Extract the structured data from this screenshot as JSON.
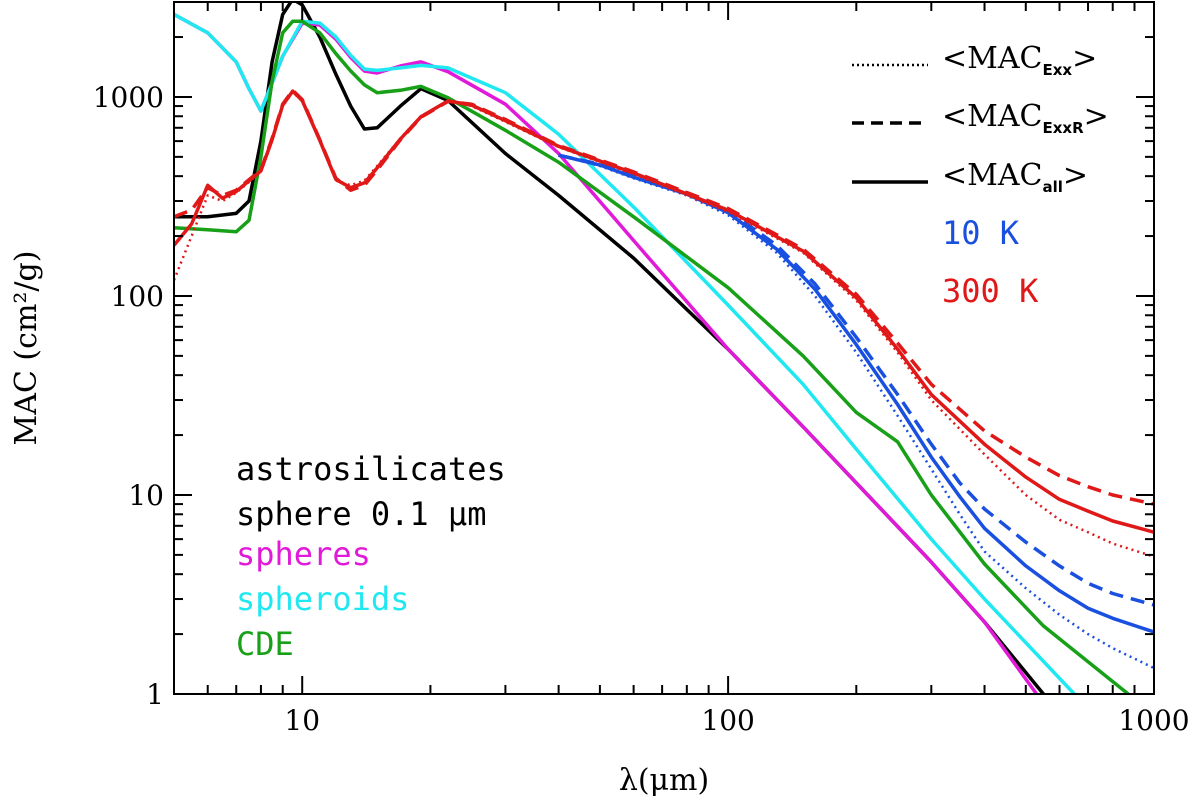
{
  "chart_data": {
    "type": "line",
    "title": "",
    "xscale": "log",
    "yscale": "log",
    "xlim": [
      5,
      1000
    ],
    "ylim": [
      1,
      3000
    ],
    "xlabel": "λ(μm)",
    "ylabel": "MAC (cm²/g)",
    "x_ticks": [
      {
        "value": 10,
        "label": "10"
      },
      {
        "value": 100,
        "label": "100"
      },
      {
        "value": 1000,
        "label": "1000"
      }
    ],
    "y_ticks": [
      {
        "value": 1,
        "label": "1"
      },
      {
        "value": 10,
        "label": "10"
      },
      {
        "value": 100,
        "label": "100"
      },
      {
        "value": 1000,
        "label": "1000"
      }
    ],
    "annotations": [
      {
        "text": "astrosilicates",
        "color": "#000000"
      },
      {
        "text": "sphere 0.1 μm",
        "color": "#000000"
      },
      {
        "text": "spheres",
        "color": "#e01ad8"
      },
      {
        "text": "spheroids",
        "color": "#20e8f0"
      },
      {
        "text": "CDE",
        "color": "#18a018"
      }
    ],
    "legend": {
      "placement": "top-right",
      "entries": [
        {
          "style": "dotted",
          "main": "MAC",
          "sub": "Exx"
        },
        {
          "style": "dashed",
          "main": "MAC",
          "sub": "ExxR"
        },
        {
          "style": "solid",
          "main": "MAC",
          "sub": "all"
        }
      ],
      "temperatures": [
        {
          "label": "10 K",
          "color": "#1a50e0"
        },
        {
          "label": "300 K",
          "color": "#e01818"
        }
      ]
    },
    "series": [
      {
        "name": "sphere 0.1 μm",
        "color": "#000000",
        "style": "solid",
        "x": [
          5,
          6,
          7,
          7.5,
          8,
          8.5,
          9,
          9.5,
          10,
          11,
          12,
          13,
          14,
          15,
          17,
          19,
          22,
          30,
          40,
          60,
          100,
          150,
          200,
          300,
          400,
          550
        ],
        "y": [
          250,
          250,
          260,
          300,
          600,
          1500,
          2600,
          3100,
          2900,
          2000,
          1300,
          900,
          690,
          700,
          900,
          1100,
          960,
          520,
          320,
          155,
          54,
          22,
          11.5,
          4.6,
          2.3,
          1
        ]
      },
      {
        "name": "spheres",
        "color": "#e01ad8",
        "style": "solid",
        "x": [
          5,
          6,
          7,
          7.5,
          8,
          9,
          10,
          11,
          12,
          13,
          14,
          15,
          17,
          19,
          22,
          30,
          40,
          60,
          100,
          150,
          200,
          300,
          400,
          530
        ],
        "y": [
          2600,
          2100,
          1500,
          1100,
          850,
          1600,
          2350,
          2300,
          1950,
          1580,
          1350,
          1320,
          1430,
          1500,
          1340,
          920,
          520,
          190,
          54,
          22,
          11.5,
          4.6,
          2.3,
          1
        ]
      },
      {
        "name": "spheroids",
        "color": "#20e8f0",
        "style": "solid",
        "x": [
          5,
          6,
          7,
          7.5,
          8,
          9,
          10,
          11,
          12,
          13,
          14,
          15,
          17,
          19,
          22,
          30,
          40,
          60,
          100,
          150,
          200,
          300,
          400,
          650
        ],
        "y": [
          2600,
          2100,
          1500,
          1100,
          850,
          1600,
          2400,
          2350,
          2000,
          1620,
          1380,
          1360,
          1400,
          1440,
          1400,
          1050,
          650,
          280,
          90,
          36,
          17,
          6,
          3,
          1
        ]
      },
      {
        "name": "CDE",
        "color": "#18a018",
        "style": "solid",
        "x": [
          5,
          6,
          7,
          7.5,
          8,
          8.5,
          9,
          9.5,
          10,
          11,
          12,
          13,
          14,
          15,
          17,
          19,
          22,
          30,
          40,
          60,
          100,
          150,
          200,
          250,
          300,
          400,
          550,
          870
        ],
        "y": [
          220,
          215,
          210,
          240,
          500,
          1200,
          2100,
          2400,
          2400,
          2100,
          1650,
          1350,
          1150,
          1050,
          1080,
          1130,
          990,
          680,
          470,
          250,
          110,
          50,
          26,
          18.5,
          10,
          4.5,
          2.2,
          1
        ]
      },
      {
        "name": "10 K Exx",
        "color": "#1a50e0",
        "style": "dotted",
        "x": [
          40,
          50,
          60,
          80,
          100,
          130,
          160,
          200,
          250,
          300,
          350,
          400,
          500,
          600,
          700,
          800,
          1000
        ],
        "y": [
          510,
          450,
          390,
          320,
          255,
          165,
          100,
          52,
          25,
          13.5,
          8,
          5.2,
          3.4,
          2.5,
          2,
          1.7,
          1.35
        ]
      },
      {
        "name": "10 K ExxR",
        "color": "#1a50e0",
        "style": "dashed",
        "x": [
          40,
          50,
          60,
          80,
          100,
          130,
          160,
          200,
          250,
          300,
          350,
          400,
          500,
          600,
          700,
          800,
          1000
        ],
        "y": [
          510,
          460,
          400,
          330,
          268,
          180,
          115,
          62,
          32,
          18,
          11.5,
          8.5,
          5.8,
          4.4,
          3.6,
          3.2,
          2.8
        ]
      },
      {
        "name": "10 K all",
        "color": "#1a50e0",
        "style": "solid",
        "x": [
          40,
          50,
          60,
          80,
          100,
          130,
          160,
          200,
          250,
          300,
          350,
          400,
          500,
          600,
          700,
          800,
          1000
        ],
        "y": [
          510,
          455,
          395,
          325,
          262,
          172,
          108,
          57,
          28.5,
          15.5,
          9.8,
          6.8,
          4.4,
          3.3,
          2.7,
          2.4,
          2.05
        ]
      },
      {
        "name": "300 K Exx",
        "color": "#e01818",
        "style": "dotted",
        "x": [
          5,
          5.5,
          6,
          6.5,
          7,
          8,
          8.5,
          9,
          9.5,
          10,
          11,
          12,
          13,
          14,
          15,
          17,
          19,
          22,
          25,
          30,
          40,
          60,
          100,
          150,
          200,
          250,
          300,
          400,
          500,
          600,
          700,
          800,
          1000
        ],
        "y": [
          120,
          200,
          320,
          300,
          330,
          420,
          600,
          900,
          1060,
          950,
          600,
          380,
          360,
          380,
          450,
          620,
          800,
          960,
          900,
          750,
          560,
          410,
          265,
          165,
          95,
          52,
          30,
          16,
          10,
          7.5,
          6.5,
          5.7,
          4.9
        ]
      },
      {
        "name": "300 K ExxR",
        "color": "#e01818",
        "style": "dashed",
        "x": [
          5,
          5.5,
          6,
          6.5,
          7,
          8,
          8.5,
          9,
          9.5,
          10,
          11,
          12,
          13,
          14,
          15,
          17,
          19,
          22,
          25,
          30,
          40,
          60,
          100,
          150,
          200,
          250,
          300,
          400,
          500,
          600,
          700,
          800,
          1000
        ],
        "y": [
          250,
          270,
          350,
          320,
          340,
          430,
          620,
          920,
          1080,
          970,
          610,
          390,
          340,
          360,
          430,
          610,
          790,
          950,
          920,
          770,
          570,
          420,
          275,
          172,
          102,
          58,
          36,
          21,
          15.5,
          12.5,
          11,
          10,
          9
        ]
      },
      {
        "name": "300 K all",
        "color": "#e01818",
        "style": "solid",
        "x": [
          5,
          5.5,
          6,
          6.5,
          7,
          8,
          8.5,
          9,
          9.5,
          10,
          11,
          12,
          13,
          14,
          15,
          17,
          19,
          22,
          25,
          30,
          40,
          60,
          100,
          150,
          200,
          250,
          300,
          400,
          500,
          600,
          700,
          800,
          1000
        ],
        "y": [
          180,
          230,
          360,
          310,
          335,
          425,
          610,
          910,
          1070,
          960,
          605,
          385,
          350,
          370,
          440,
          615,
          795,
          955,
          910,
          760,
          565,
          415,
          270,
          168,
          98,
          54,
          32,
          18,
          12.3,
          9.5,
          8.3,
          7.4,
          6.5
        ]
      }
    ]
  }
}
